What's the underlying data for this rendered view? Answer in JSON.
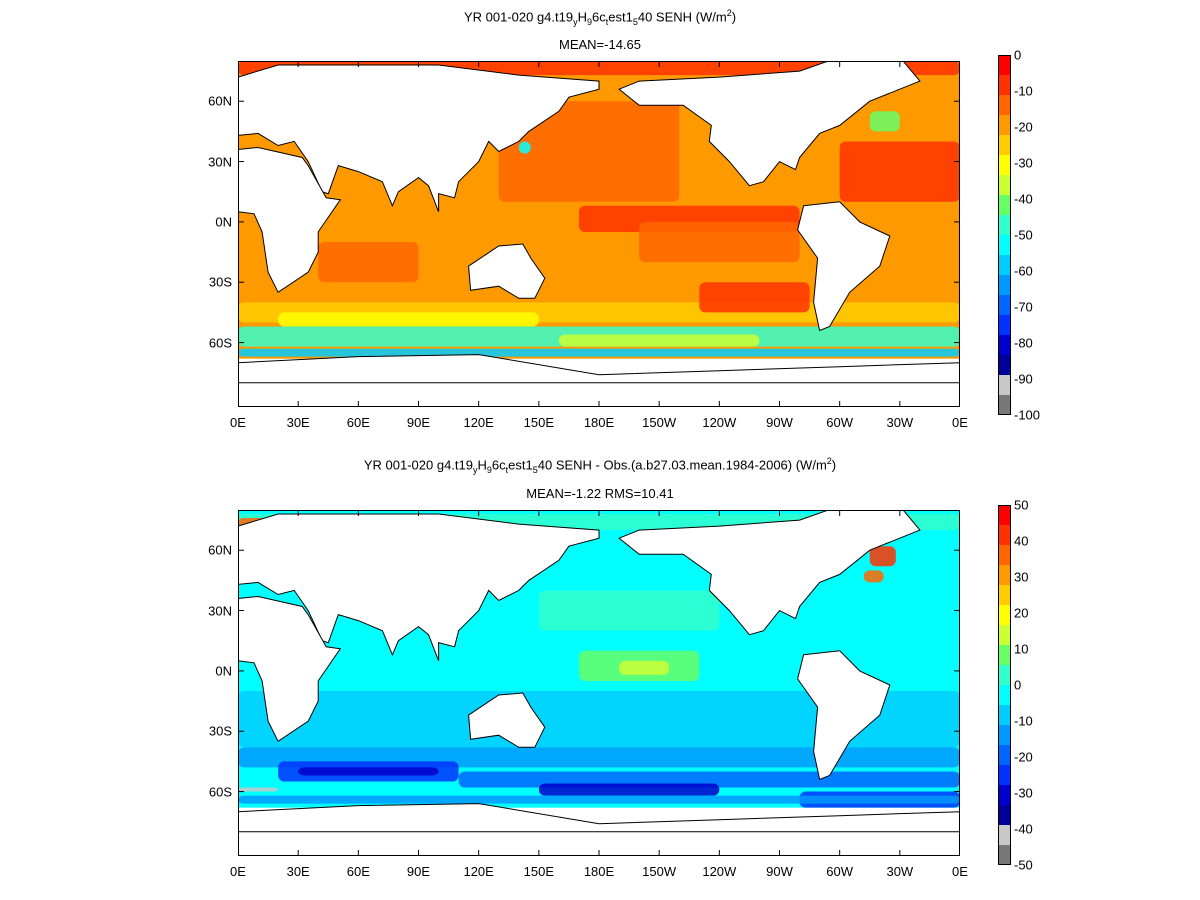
{
  "chart_data": [
    {
      "type": "heatmap",
      "title": {
        "prefix": "YR 001-020 g4.t19",
        "sub1": "y",
        "mid1": "H",
        "sub2": "9",
        "mid2": "6c",
        "sub3": "t",
        "mid3": "est1",
        "sub4": "5",
        "tail": "40  SENH (W/m",
        "sup": "2",
        "close": ")"
      },
      "subtitle": "MEAN=-14.65",
      "x_tick_labels": [
        "0E",
        "30E",
        "60E",
        "90E",
        "120E",
        "150E",
        "180E",
        "150W",
        "120W",
        "90W",
        "60W",
        "30W",
        "0E"
      ],
      "y_tick_labels": [
        "60N",
        "30N",
        "0N",
        "30S",
        "60S"
      ],
      "colorbar": {
        "labels": [
          "0",
          "-10",
          "-20",
          "-30",
          "-40",
          "-50",
          "-60",
          "-70",
          "-80",
          "-90",
          "-100"
        ],
        "range": [
          -100,
          0
        ]
      }
    },
    {
      "type": "heatmap",
      "title": {
        "prefix": "YR 001-020 g4.t19",
        "sub1": "y",
        "mid1": "H",
        "sub2": "9",
        "mid2": "6c",
        "sub3": "t",
        "mid3": "est1",
        "sub4": "5",
        "tail": "40 SENH - Obs.(a.b27.03.mean.1984-2006) (W/m",
        "sup": "2",
        "close": ")"
      },
      "subtitle": "MEAN=-1.22 RMS=10.41",
      "x_tick_labels": [
        "0E",
        "30E",
        "60E",
        "90E",
        "120E",
        "150E",
        "180E",
        "150W",
        "120W",
        "90W",
        "60W",
        "30W",
        "0E"
      ],
      "y_tick_labels": [
        "60N",
        "30N",
        "0N",
        "30S",
        "60S"
      ],
      "colorbar": {
        "labels": [
          "50",
          "40",
          "30",
          "20",
          "10",
          "0",
          "-10",
          "-20",
          "-30",
          "-40",
          "-50"
        ],
        "range": [
          -50,
          50
        ]
      }
    }
  ],
  "colors": {
    "scale": [
      "#ff0000",
      "#ff3300",
      "#ff6600",
      "#ff9900",
      "#ffcc00",
      "#ffff00",
      "#ccff33",
      "#66ff66",
      "#33ffcc",
      "#00ffff",
      "#00ccff",
      "#0099ff",
      "#0066ff",
      "#0033ff",
      "#0000cc",
      "#000099",
      "#c8c8c8",
      "#787878"
    ],
    "land": "#ffffff",
    "coast": "#000000"
  }
}
